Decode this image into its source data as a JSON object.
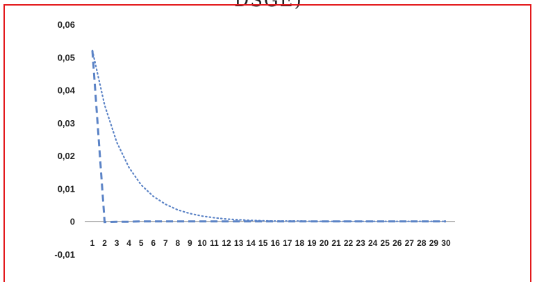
{
  "caption_fragment": "DSGE)",
  "colors": {
    "frame": "#e3191c",
    "series": "#5b83c6",
    "axis": "#999999"
  },
  "chart_data": {
    "type": "line",
    "title": "",
    "xlabel": "",
    "ylabel": "",
    "grid": false,
    "legend": "none",
    "x": [
      1,
      2,
      3,
      4,
      5,
      6,
      7,
      8,
      9,
      10,
      11,
      12,
      13,
      14,
      15,
      16,
      17,
      18,
      19,
      20,
      21,
      22,
      23,
      24,
      25,
      26,
      27,
      28,
      29,
      30
    ],
    "ylim": [
      -0.01,
      0.06
    ],
    "y_tick_labels": [
      "0,06",
      "0,05",
      "0,04",
      "0,03",
      "0,02",
      "0,01",
      "0",
      "-0,01"
    ],
    "y_tick_values": [
      0.06,
      0.05,
      0.04,
      0.03,
      0.02,
      0.01,
      0,
      -0.01
    ],
    "x_tick_labels": [
      "1",
      "2",
      "3",
      "4",
      "5",
      "6",
      "7",
      "8",
      "9",
      "10",
      "11",
      "12",
      "13",
      "14",
      "15",
      "16",
      "17",
      "18",
      "19",
      "20",
      "21",
      "22",
      "23",
      "24",
      "25",
      "26",
      "27",
      "28",
      "29",
      "30"
    ],
    "series": [
      {
        "style": "dashed",
        "values": [
          0.052,
          -0.0002,
          -0.0001,
          -0.0001,
          0,
          0,
          0,
          0,
          0,
          0,
          0,
          0,
          0,
          0,
          0,
          0,
          0,
          0,
          0,
          0,
          0,
          0,
          0,
          0,
          0,
          0,
          0,
          0,
          0,
          0
        ]
      },
      {
        "style": "dotted",
        "values": [
          0.052,
          0.0354,
          0.0241,
          0.0164,
          0.0111,
          0.0076,
          0.0052,
          0.0035,
          0.0024,
          0.0016,
          0.0011,
          0.0007,
          0.0005,
          0.0003,
          0.0002,
          0.0001,
          0.0001,
          0.0001,
          0,
          0,
          0,
          0,
          0,
          0,
          0,
          0,
          0,
          0,
          0,
          0
        ]
      }
    ]
  }
}
